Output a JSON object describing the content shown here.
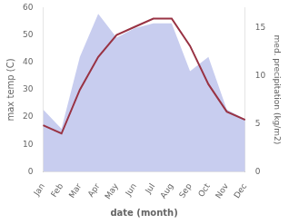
{
  "chart_data": {
    "type": "line",
    "categories": [
      "Jan",
      "Feb",
      "Mar",
      "Apr",
      "May",
      "Jun",
      "Jul",
      "Aug",
      "Sep",
      "Oct",
      "Nov",
      "Dec"
    ],
    "xlabel": "date (month)",
    "ylabel": "max temp (C)",
    "y2label": "med. precipitation (kg/m2)",
    "series": [
      {
        "type": "area",
        "axis": "y2",
        "color": "#b0b8e8",
        "values": [
          6.5,
          4.5,
          12.0,
          16.5,
          14.0,
          15.0,
          15.5,
          15.5,
          10.5,
          12.0,
          6.5,
          5.5
        ]
      },
      {
        "type": "line",
        "color": "#993344",
        "values": [
          17,
          14,
          30,
          42,
          50,
          53,
          56,
          56,
          46,
          32,
          22,
          19
        ]
      }
    ],
    "ylim": [
      0,
      60
    ],
    "yticks": [
      0,
      10,
      20,
      30,
      40,
      50,
      60
    ],
    "y2lim": [
      0,
      17.14
    ],
    "y2ticks": [
      0,
      5,
      10,
      15
    ],
    "grid": false
  }
}
